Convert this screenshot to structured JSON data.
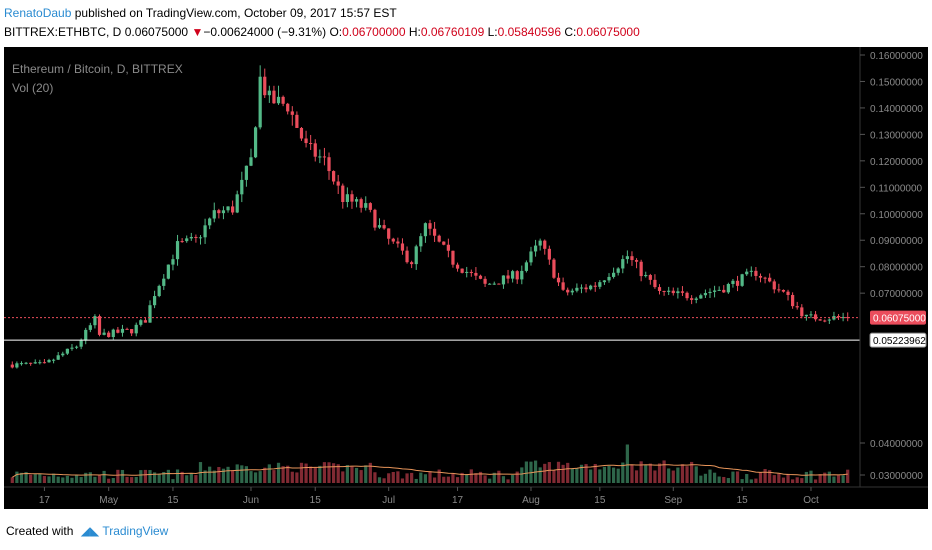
{
  "header": {
    "author": "RenatoDaub",
    "published": " published on TradingView.com, October 09, 2017 15:57 EST",
    "symbol": "BITTREX:ETHBTC, D",
    "last": "0.06075000",
    "change": "−0.00624000 (−9.31%)",
    "o_label": "O:",
    "o": "0.06700000",
    "h_label": "H:",
    "h": "0.06760109",
    "l_label": "L:",
    "l": "0.05840596",
    "c_label": "C:",
    "c": "0.06075000"
  },
  "footer": {
    "created": "Created with",
    "brand": "TradingView"
  },
  "colors": {
    "up": "#53b987",
    "down": "#eb4d5c",
    "volume_ma": "#e8955a",
    "background": "#000000",
    "price_line": "#eb4d5c"
  },
  "chart_data": {
    "type": "candlestick",
    "title": "Ethereum / Bitcoin, D, BITTREX",
    "indicator": "Vol (20)",
    "ylim": [
      0.028,
      0.161
    ],
    "y_ticks": [
      "0.16000000",
      "0.15000000",
      "0.14000000",
      "0.13000000",
      "0.12000000",
      "0.11000000",
      "0.10000000",
      "0.09000000",
      "0.08000000",
      "0.07000000",
      "0.04000000",
      "0.03000000"
    ],
    "x_ticks": [
      "17",
      "May",
      "15",
      "Jun",
      "15",
      "Jul",
      "17",
      "Aug",
      "15",
      "Sep",
      "15",
      "Oct"
    ],
    "last_price_label": "0.06075000",
    "crosshair_label": "0.05223962",
    "series": [
      {
        "date": "Apr 17",
        "close": 0.043
      },
      {
        "date": "Apr 24",
        "close": 0.05
      },
      {
        "date": "Apr 28",
        "close": 0.06
      },
      {
        "date": "May 1",
        "close": 0.058
      },
      {
        "date": "May 8",
        "close": 0.054
      },
      {
        "date": "May 15",
        "close": 0.056
      },
      {
        "date": "May 18",
        "close": 0.06
      },
      {
        "date": "May 20",
        "close": 0.07
      },
      {
        "date": "May 25",
        "close": 0.088
      },
      {
        "date": "May 29",
        "close": 0.09
      },
      {
        "date": "Jun 2",
        "close": 0.1
      },
      {
        "date": "Jun 6",
        "close": 0.102
      },
      {
        "date": "Jun 10",
        "close": 0.12
      },
      {
        "date": "Jun 12",
        "close": 0.151
      },
      {
        "date": "Jun 14",
        "close": 0.143
      },
      {
        "date": "Jun 18",
        "close": 0.141
      },
      {
        "date": "Jun 22",
        "close": 0.125
      },
      {
        "date": "Jun 26",
        "close": 0.12
      },
      {
        "date": "Jun 30",
        "close": 0.106
      },
      {
        "date": "Jul 5",
        "close": 0.102
      },
      {
        "date": "Jul 10",
        "close": 0.09
      },
      {
        "date": "Jul 15",
        "close": 0.082
      },
      {
        "date": "Jul 18",
        "close": 0.095
      },
      {
        "date": "Jul 24",
        "close": 0.082
      },
      {
        "date": "Jul 31",
        "close": 0.073
      },
      {
        "date": "Aug 7",
        "close": 0.077
      },
      {
        "date": "Aug 12",
        "close": 0.089
      },
      {
        "date": "Aug 17",
        "close": 0.07
      },
      {
        "date": "Aug 24",
        "close": 0.073
      },
      {
        "date": "Aug 31",
        "close": 0.084
      },
      {
        "date": "Sep 7",
        "close": 0.07
      },
      {
        "date": "Sep 14",
        "close": 0.069
      },
      {
        "date": "Sep 21",
        "close": 0.072
      },
      {
        "date": "Sep 28",
        "close": 0.078
      },
      {
        "date": "Oct 4",
        "close": 0.07
      },
      {
        "date": "Oct 9",
        "close": 0.0608
      }
    ]
  }
}
